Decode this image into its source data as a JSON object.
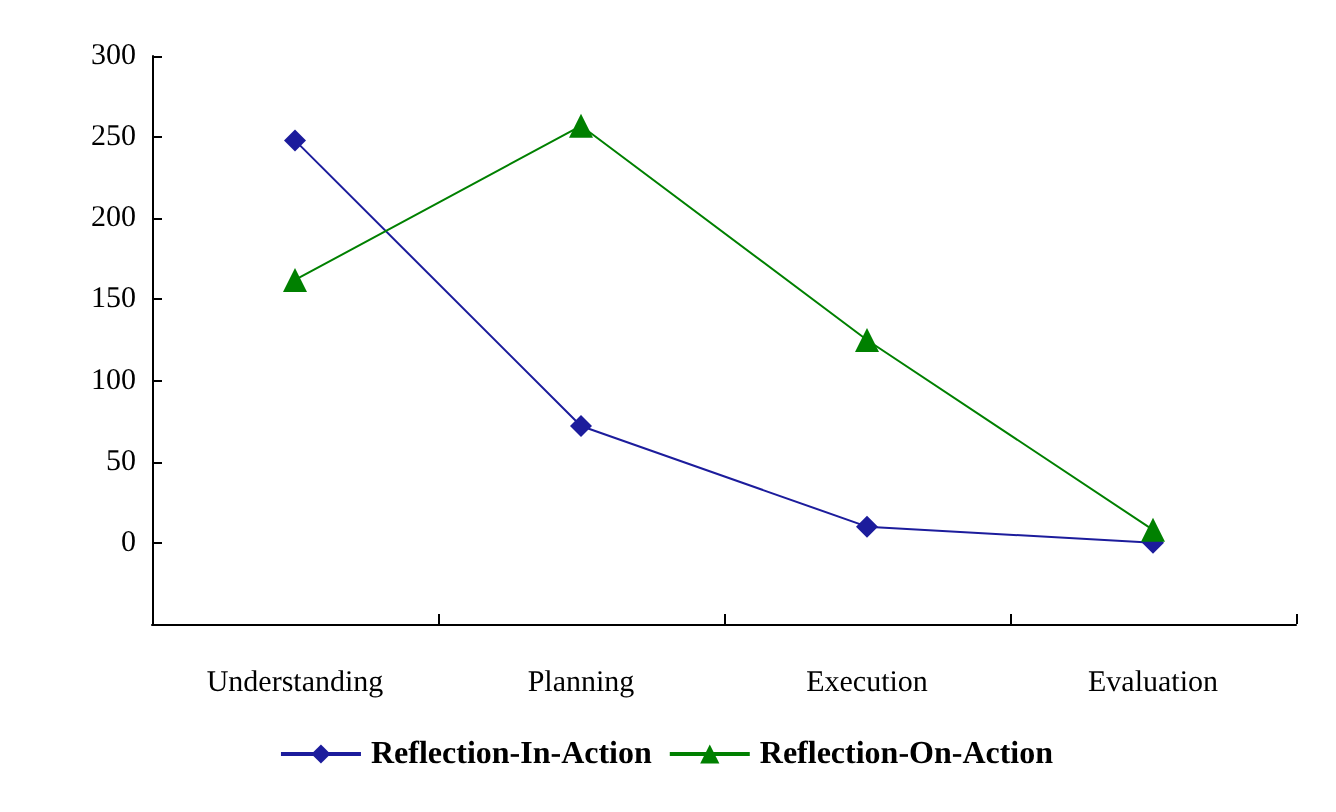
{
  "chart_data": {
    "type": "line",
    "categories": [
      "Understanding",
      "Planning",
      "Execution",
      "Evaluation"
    ],
    "series": [
      {
        "name": "Reflection-In-Action",
        "color": "#1c1c9c",
        "marker": "diamond",
        "values": [
          248,
          72,
          10,
          0
        ]
      },
      {
        "name": "Reflection-On-Action",
        "color": "#008000",
        "marker": "triangle",
        "values": [
          162,
          257,
          125,
          8
        ]
      }
    ],
    "ylim": [
      -50,
      300
    ],
    "yticks": [
      {
        "value": -50,
        "label": null
      },
      0,
      50,
      100,
      150,
      200,
      250,
      300
    ],
    "grid": false,
    "legend": "bottom",
    "line_style": "solid"
  }
}
